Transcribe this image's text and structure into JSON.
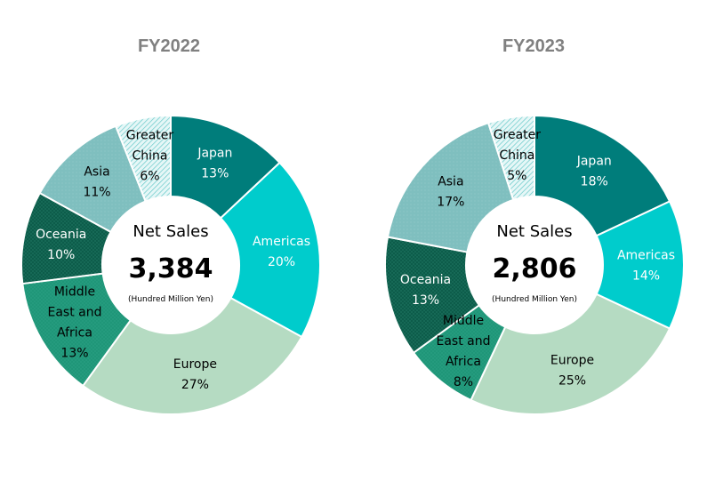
{
  "chart_data": [
    {
      "type": "pie",
      "title": "FY2022",
      "center": {
        "title": "Net Sales",
        "value": "3,384",
        "unit": "(Hundred Million Yen)"
      },
      "categories": [
        "Japan",
        "Americas",
        "Europe",
        "Middle East and Africa",
        "Oceania",
        "Asia",
        "Greater China"
      ],
      "values": [
        13,
        20,
        27,
        13,
        10,
        11,
        6
      ],
      "labels": [
        {
          "lines": [
            "Japan"
          ],
          "pct": "13%"
        },
        {
          "lines": [
            "Americas"
          ],
          "pct": "20%"
        },
        {
          "lines": [
            "Europe"
          ],
          "pct": "27%"
        },
        {
          "lines": [
            "Middle",
            "East and",
            "Africa"
          ],
          "pct": "13%"
        },
        {
          "lines": [
            "Oceania"
          ],
          "pct": "10%"
        },
        {
          "lines": [
            "Asia"
          ],
          "pct": "11%"
        },
        {
          "lines": [
            "Greater",
            "China"
          ],
          "pct": "6%"
        }
      ]
    },
    {
      "type": "pie",
      "title": "FY2023",
      "center": {
        "title": "Net Sales",
        "value": "2,806",
        "unit": "(Hundred Million Yen)"
      },
      "categories": [
        "Japan",
        "Americas",
        "Europe",
        "Middle East and Africa",
        "Oceania",
        "Asia",
        "Greater China"
      ],
      "values": [
        18,
        14,
        25,
        8,
        13,
        17,
        5
      ],
      "labels": [
        {
          "lines": [
            "Japan"
          ],
          "pct": "18%"
        },
        {
          "lines": [
            "Americas"
          ],
          "pct": "14%"
        },
        {
          "lines": [
            "Europe"
          ],
          "pct": "25%"
        },
        {
          "lines": [
            "Middle",
            "East and",
            "Africa"
          ],
          "pct": "8%"
        },
        {
          "lines": [
            "Oceania"
          ],
          "pct": "13%"
        },
        {
          "lines": [
            "Asia"
          ],
          "pct": "17%"
        },
        {
          "lines": [
            "Greater",
            "China"
          ],
          "pct": "5%"
        }
      ]
    }
  ],
  "colors": {
    "Japan": "#007d7b",
    "Americas": "#00cccc",
    "Europe": "#b5dbc2",
    "Middle East and Africa": "#1f9678",
    "Oceania": "#0d5c4a",
    "Asia": "#7fbfbf",
    "Greater China": "#bfe8e8"
  },
  "label_colors": {
    "Japan": "#ffffff",
    "Americas": "#ffffff",
    "Europe": "#000000",
    "Middle East and Africa": "#000000",
    "Oceania": "#ffffff",
    "Asia": "#000000",
    "Greater China": "#000000"
  }
}
